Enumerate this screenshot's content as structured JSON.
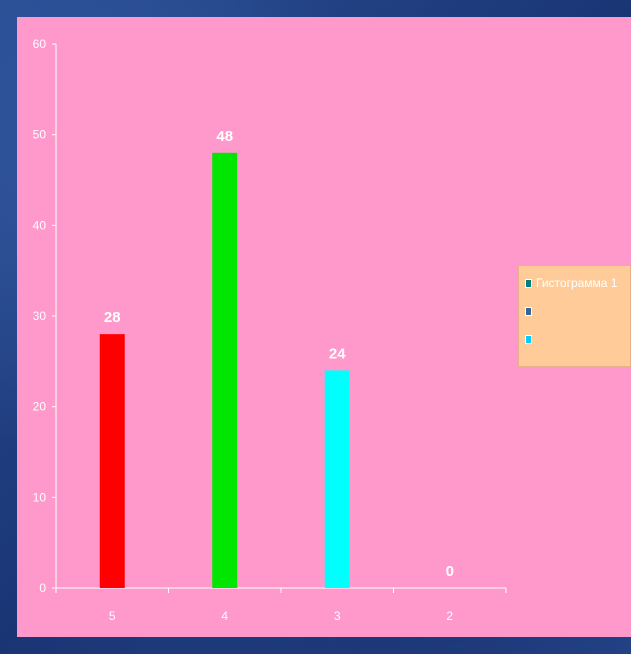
{
  "colors": {
    "panel_bg": "#ff99cc",
    "legend_bg": "#ffcc99",
    "axis": "#ffffff",
    "label": "#ffffff"
  },
  "legend": {
    "items": [
      {
        "label": "Гистограмма 1",
        "color": "#008080"
      },
      {
        "label": "",
        "color": "#336699"
      },
      {
        "label": "",
        "color": "#00ccff"
      }
    ],
    "placement": "right"
  },
  "chart_data": {
    "type": "bar",
    "title": "",
    "xlabel": "",
    "ylabel": "",
    "categories": [
      "5",
      "4",
      "3",
      "2"
    ],
    "values": [
      28,
      48,
      24,
      0
    ],
    "bar_colors": [
      "#ff0000",
      "#00e600",
      "#00ffff",
      "#ff99cc"
    ],
    "data_labels": [
      "28",
      "48",
      "24",
      "0"
    ],
    "ylim": [
      0,
      60
    ],
    "yticks": [
      "0",
      "10",
      "20",
      "30",
      "40",
      "50",
      "60"
    ],
    "grid": false,
    "legend_placement": "right"
  }
}
